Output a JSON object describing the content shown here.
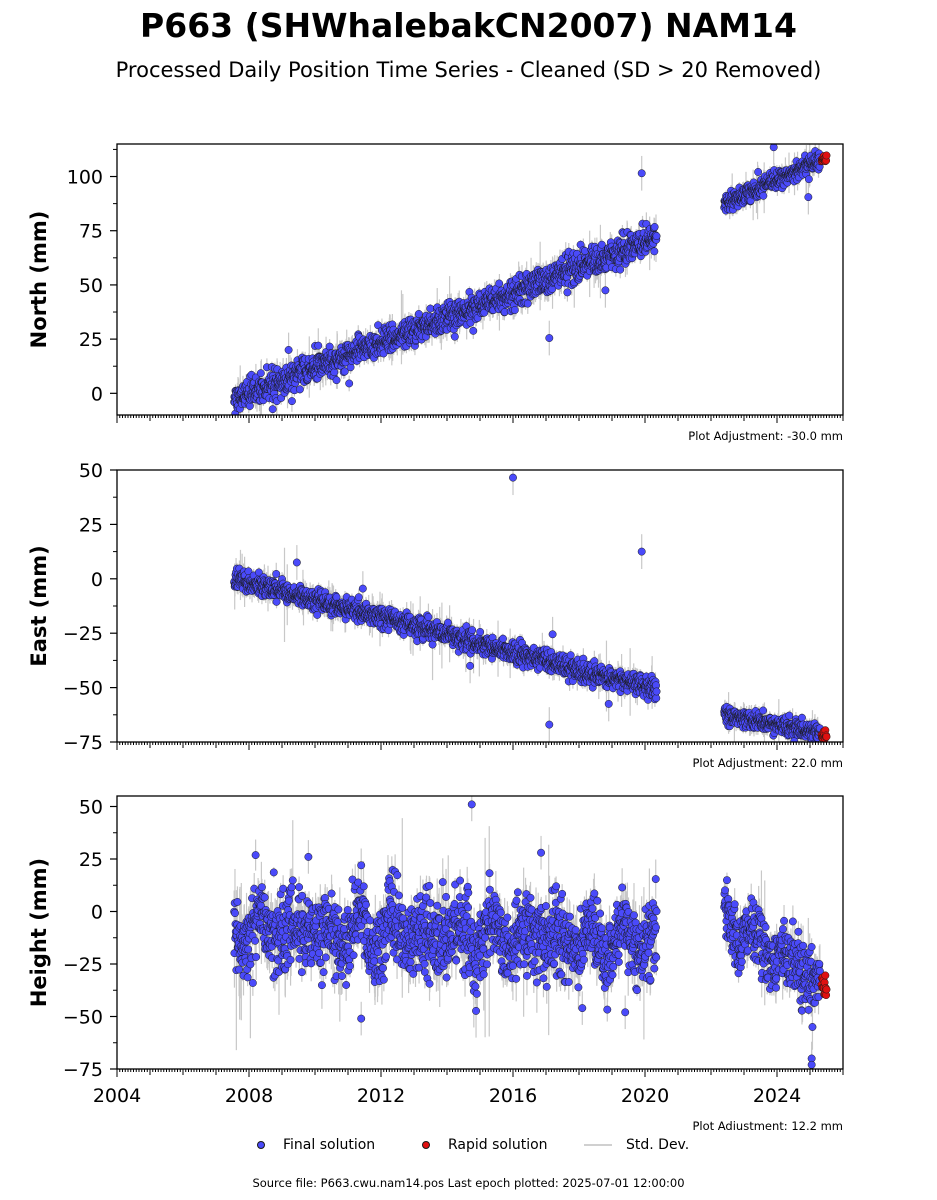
{
  "title": "P663 (SHWhalebakCN2007) NAM14",
  "subtitle": "Processed Daily Position Time Series - Cleaned (SD > 20 Removed)",
  "legend": {
    "final": "Final solution",
    "rapid": "Rapid solution",
    "std": "Std. Dev."
  },
  "source_line": "Source file: P663.cwu.nam14.pos  Last epoch plotted: 2025-07-01 12:00:00",
  "colors": {
    "final": "#4a4afa",
    "rapid": "#e01010",
    "std": "#c8c8c8",
    "edge": "#1a1a1a"
  },
  "chart_data": [
    {
      "type": "scatter",
      "id": "north",
      "ylabel": "North (mm)",
      "adjustment": "Plot Adjustment: -30.0 mm",
      "xlim": [
        2004.0,
        2026.0
      ],
      "ylim": [
        -10,
        115
      ],
      "yticks": [
        0,
        25,
        50,
        75,
        100
      ],
      "ytick_labels": [
        "0",
        "25",
        "50",
        "75",
        "100"
      ],
      "grid": false,
      "segments": [
        {
          "x_start": 2007.55,
          "x_end": 2020.35,
          "y_start": -3,
          "y_end": 72,
          "noise": 3.2
        },
        {
          "x_start": 2022.4,
          "x_end": 2025.3,
          "y_start": 87,
          "y_end": 108,
          "noise": 2.0
        }
      ],
      "outliers": [
        [
          2019.9,
          101.5
        ],
        [
          2017.1,
          25.5
        ],
        [
          2018.8,
          47.5
        ],
        [
          2023.9,
          113.5
        ],
        [
          2024.95,
          90.5
        ],
        [
          2009.2,
          20
        ],
        [
          2010.1,
          22
        ]
      ],
      "rapid": {
        "x_start": 2025.35,
        "x_end": 2025.5,
        "y": 108.5,
        "spread": 1.5
      }
    },
    {
      "type": "scatter",
      "id": "east",
      "ylabel": "East (mm)",
      "adjustment": "Plot Adjustment: 22.0 mm",
      "xlim": [
        2004.0,
        2026.0
      ],
      "ylim": [
        -75,
        50
      ],
      "yticks": [
        -75,
        -50,
        -25,
        0,
        25,
        50
      ],
      "ytick_labels": [
        "−75",
        "−50",
        "−25",
        "0",
        "25",
        "50"
      ],
      "grid": false,
      "segments": [
        {
          "x_start": 2007.55,
          "x_end": 2020.35,
          "y_start": 0,
          "y_end": -51,
          "noise": 2.3
        },
        {
          "x_start": 2022.4,
          "x_end": 2025.3,
          "y_start": -62,
          "y_end": -71,
          "noise": 2.0
        }
      ],
      "outliers": [
        [
          2016.0,
          46.5
        ],
        [
          2019.9,
          12.5
        ],
        [
          2009.45,
          7.5
        ],
        [
          2017.1,
          -67
        ],
        [
          2018.9,
          -57.5
        ],
        [
          2011.45,
          -4.5
        ],
        [
          2017.2,
          -25.5
        ],
        [
          2014.7,
          -40
        ]
      ],
      "rapid": {
        "x_start": 2025.35,
        "x_end": 2025.5,
        "y": -71.5,
        "spread": 2.0
      }
    },
    {
      "type": "scatter",
      "id": "height",
      "ylabel": "Height (mm)",
      "adjustment": "Plot Adjustment: 12.2 mm",
      "xlim": [
        2004.0,
        2026.0
      ],
      "ylim": [
        -75,
        55
      ],
      "yticks": [
        -75,
        -50,
        -25,
        0,
        25,
        50
      ],
      "ytick_labels": [
        "−75",
        "−50",
        "−25",
        "0",
        "25",
        "50"
      ],
      "xticks": [
        2004,
        2008,
        2012,
        2016,
        2020,
        2024
      ],
      "xtick_labels": [
        "2004",
        "2008",
        "2012",
        "2016",
        "2020",
        "2024"
      ],
      "grid": false,
      "segments": [
        {
          "x_start": 2007.55,
          "x_end": 2020.35,
          "y_start": -8,
          "y_end": -15,
          "noise": 9.0,
          "seasonal": 10
        },
        {
          "x_start": 2022.4,
          "x_end": 2025.3,
          "y_start": -5,
          "y_end": -33,
          "noise": 7.0,
          "seasonal": 8
        }
      ],
      "outliers": [
        [
          2014.75,
          51
        ],
        [
          2011.4,
          -51
        ],
        [
          2025.05,
          -70
        ],
        [
          2025.05,
          -73
        ],
        [
          2016.85,
          28
        ],
        [
          2009.8,
          26
        ],
        [
          2011.4,
          22
        ],
        [
          2018.1,
          -46
        ],
        [
          2019.4,
          -48
        ]
      ],
      "rapid": {
        "x_start": 2025.35,
        "x_end": 2025.5,
        "y": -35,
        "spread": 6.0
      }
    }
  ]
}
